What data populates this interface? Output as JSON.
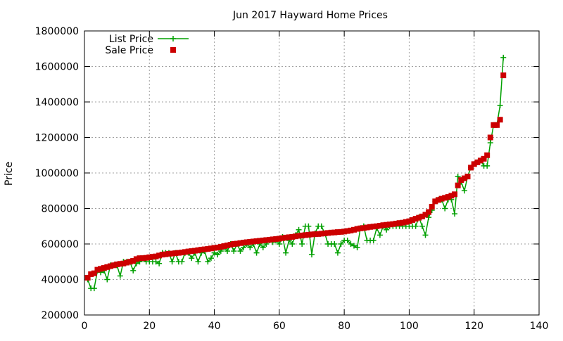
{
  "chart_data": {
    "type": "line",
    "title": "Jun 2017 Hayward Home Prices",
    "xlabel": "",
    "ylabel": "Price",
    "xlim": [
      0,
      140
    ],
    "ylim": [
      200000,
      1800000
    ],
    "xticks": [
      0,
      20,
      40,
      60,
      80,
      100,
      120,
      140
    ],
    "yticks": [
      200000,
      400000,
      600000,
      800000,
      1000000,
      1200000,
      1400000,
      1600000,
      1800000
    ],
    "grid": true,
    "legend_position": "top-left",
    "colors": {
      "list": "#00a000",
      "sale": "#cc0000",
      "grid": "#a0a0a0"
    },
    "series": [
      {
        "name": "List Price",
        "style": "line-with-plus-markers",
        "color": "#00a000",
        "x": [
          1,
          2,
          3,
          4,
          5,
          6,
          7,
          8,
          9,
          10,
          11,
          12,
          13,
          14,
          15,
          16,
          17,
          18,
          19,
          20,
          21,
          22,
          23,
          24,
          25,
          26,
          27,
          28,
          29,
          30,
          31,
          32,
          33,
          34,
          35,
          36,
          37,
          38,
          39,
          40,
          41,
          42,
          43,
          44,
          45,
          46,
          47,
          48,
          49,
          50,
          51,
          52,
          53,
          54,
          55,
          56,
          57,
          58,
          59,
          60,
          61,
          62,
          63,
          64,
          65,
          66,
          67,
          68,
          69,
          70,
          71,
          72,
          73,
          74,
          75,
          76,
          77,
          78,
          79,
          80,
          81,
          82,
          83,
          84,
          85,
          86,
          87,
          88,
          89,
          90,
          91,
          92,
          93,
          94,
          95,
          96,
          97,
          98,
          99,
          100,
          101,
          102,
          103,
          104,
          105,
          106,
          107,
          108,
          109,
          110,
          111,
          112,
          113,
          114,
          115,
          116,
          117,
          118,
          119,
          120,
          121,
          122,
          123,
          124,
          125,
          126,
          127,
          128,
          129
        ],
        "values": [
          400000,
          350000,
          350000,
          450000,
          440000,
          450000,
          400000,
          480000,
          480000,
          480000,
          420000,
          500000,
          500000,
          500000,
          450000,
          490000,
          500000,
          520000,
          500000,
          500000,
          500000,
          500000,
          490000,
          550000,
          550000,
          550000,
          500000,
          550000,
          500000,
          500000,
          550000,
          550000,
          520000,
          550000,
          500000,
          550000,
          560000,
          500000,
          520000,
          550000,
          540000,
          560000,
          580000,
          560000,
          600000,
          560000,
          600000,
          560000,
          580000,
          600000,
          580000,
          600000,
          550000,
          600000,
          580000,
          600000,
          620000,
          610000,
          620000,
          600000,
          640000,
          550000,
          620000,
          600000,
          650000,
          680000,
          600000,
          700000,
          700000,
          540000,
          660000,
          700000,
          700000,
          660000,
          600000,
          600000,
          600000,
          550000,
          600000,
          620000,
          620000,
          600000,
          590000,
          580000,
          690000,
          700000,
          620000,
          620000,
          620000,
          690000,
          650000,
          700000,
          680000,
          700000,
          700000,
          700000,
          700000,
          700000,
          700000,
          700000,
          700000,
          700000,
          750000,
          700000,
          650000,
          750000,
          790000,
          840000,
          850000,
          850000,
          800000,
          850000,
          850000,
          770000,
          980000,
          950000,
          900000,
          980000,
          1030000,
          1050000,
          1060000,
          1070000,
          1040000,
          1040000,
          1170000,
          1270000,
          1270000,
          1380000,
          1650000
        ]
      },
      {
        "name": "Sale Price",
        "style": "square-markers",
        "color": "#cc0000",
        "x": [
          1,
          2,
          3,
          4,
          5,
          6,
          7,
          8,
          9,
          10,
          11,
          12,
          13,
          14,
          15,
          16,
          17,
          18,
          19,
          20,
          21,
          22,
          23,
          24,
          25,
          26,
          27,
          28,
          29,
          30,
          31,
          32,
          33,
          34,
          35,
          36,
          37,
          38,
          39,
          40,
          41,
          42,
          43,
          44,
          45,
          46,
          47,
          48,
          49,
          50,
          51,
          52,
          53,
          54,
          55,
          56,
          57,
          58,
          59,
          60,
          61,
          62,
          63,
          64,
          65,
          66,
          67,
          68,
          69,
          70,
          71,
          72,
          73,
          74,
          75,
          76,
          77,
          78,
          79,
          80,
          81,
          82,
          83,
          84,
          85,
          86,
          87,
          88,
          89,
          90,
          91,
          92,
          93,
          94,
          95,
          96,
          97,
          98,
          99,
          100,
          101,
          102,
          103,
          104,
          105,
          106,
          107,
          108,
          109,
          110,
          111,
          112,
          113,
          114,
          115,
          116,
          117,
          118,
          119,
          120,
          121,
          122,
          123,
          124,
          125,
          126,
          127,
          128,
          129
        ],
        "values": [
          410000,
          430000,
          435000,
          455000,
          460000,
          465000,
          470000,
          475000,
          480000,
          485000,
          488000,
          490000,
          495000,
          500000,
          505000,
          515000,
          520000,
          520000,
          522000,
          525000,
          528000,
          530000,
          535000,
          540000,
          542000,
          545000,
          546000,
          548000,
          550000,
          552000,
          555000,
          558000,
          560000,
          562000,
          565000,
          568000,
          570000,
          572000,
          575000,
          578000,
          580000,
          584000,
          588000,
          592000,
          596000,
          600000,
          602000,
          605000,
          608000,
          610000,
          612000,
          614000,
          616000,
          618000,
          620000,
          622000,
          624000,
          626000,
          628000,
          630000,
          633000,
          636000,
          638000,
          640000,
          643000,
          646000,
          648000,
          650000,
          652000,
          654000,
          655000,
          656000,
          658000,
          660000,
          662000,
          664000,
          665000,
          667000,
          668000,
          670000,
          673000,
          676000,
          680000,
          685000,
          688000,
          690000,
          693000,
          696000,
          698000,
          700000,
          703000,
          706000,
          708000,
          710000,
          712000,
          715000,
          718000,
          720000,
          724000,
          728000,
          735000,
          742000,
          748000,
          755000,
          765000,
          780000,
          810000,
          840000,
          848000,
          855000,
          860000,
          865000,
          872000,
          880000,
          930000,
          960000,
          970000,
          980000,
          1030000,
          1050000,
          1060000,
          1070000,
          1080000,
          1100000,
          1200000,
          1270000,
          1270000,
          1300000,
          1550000
        ]
      }
    ]
  }
}
